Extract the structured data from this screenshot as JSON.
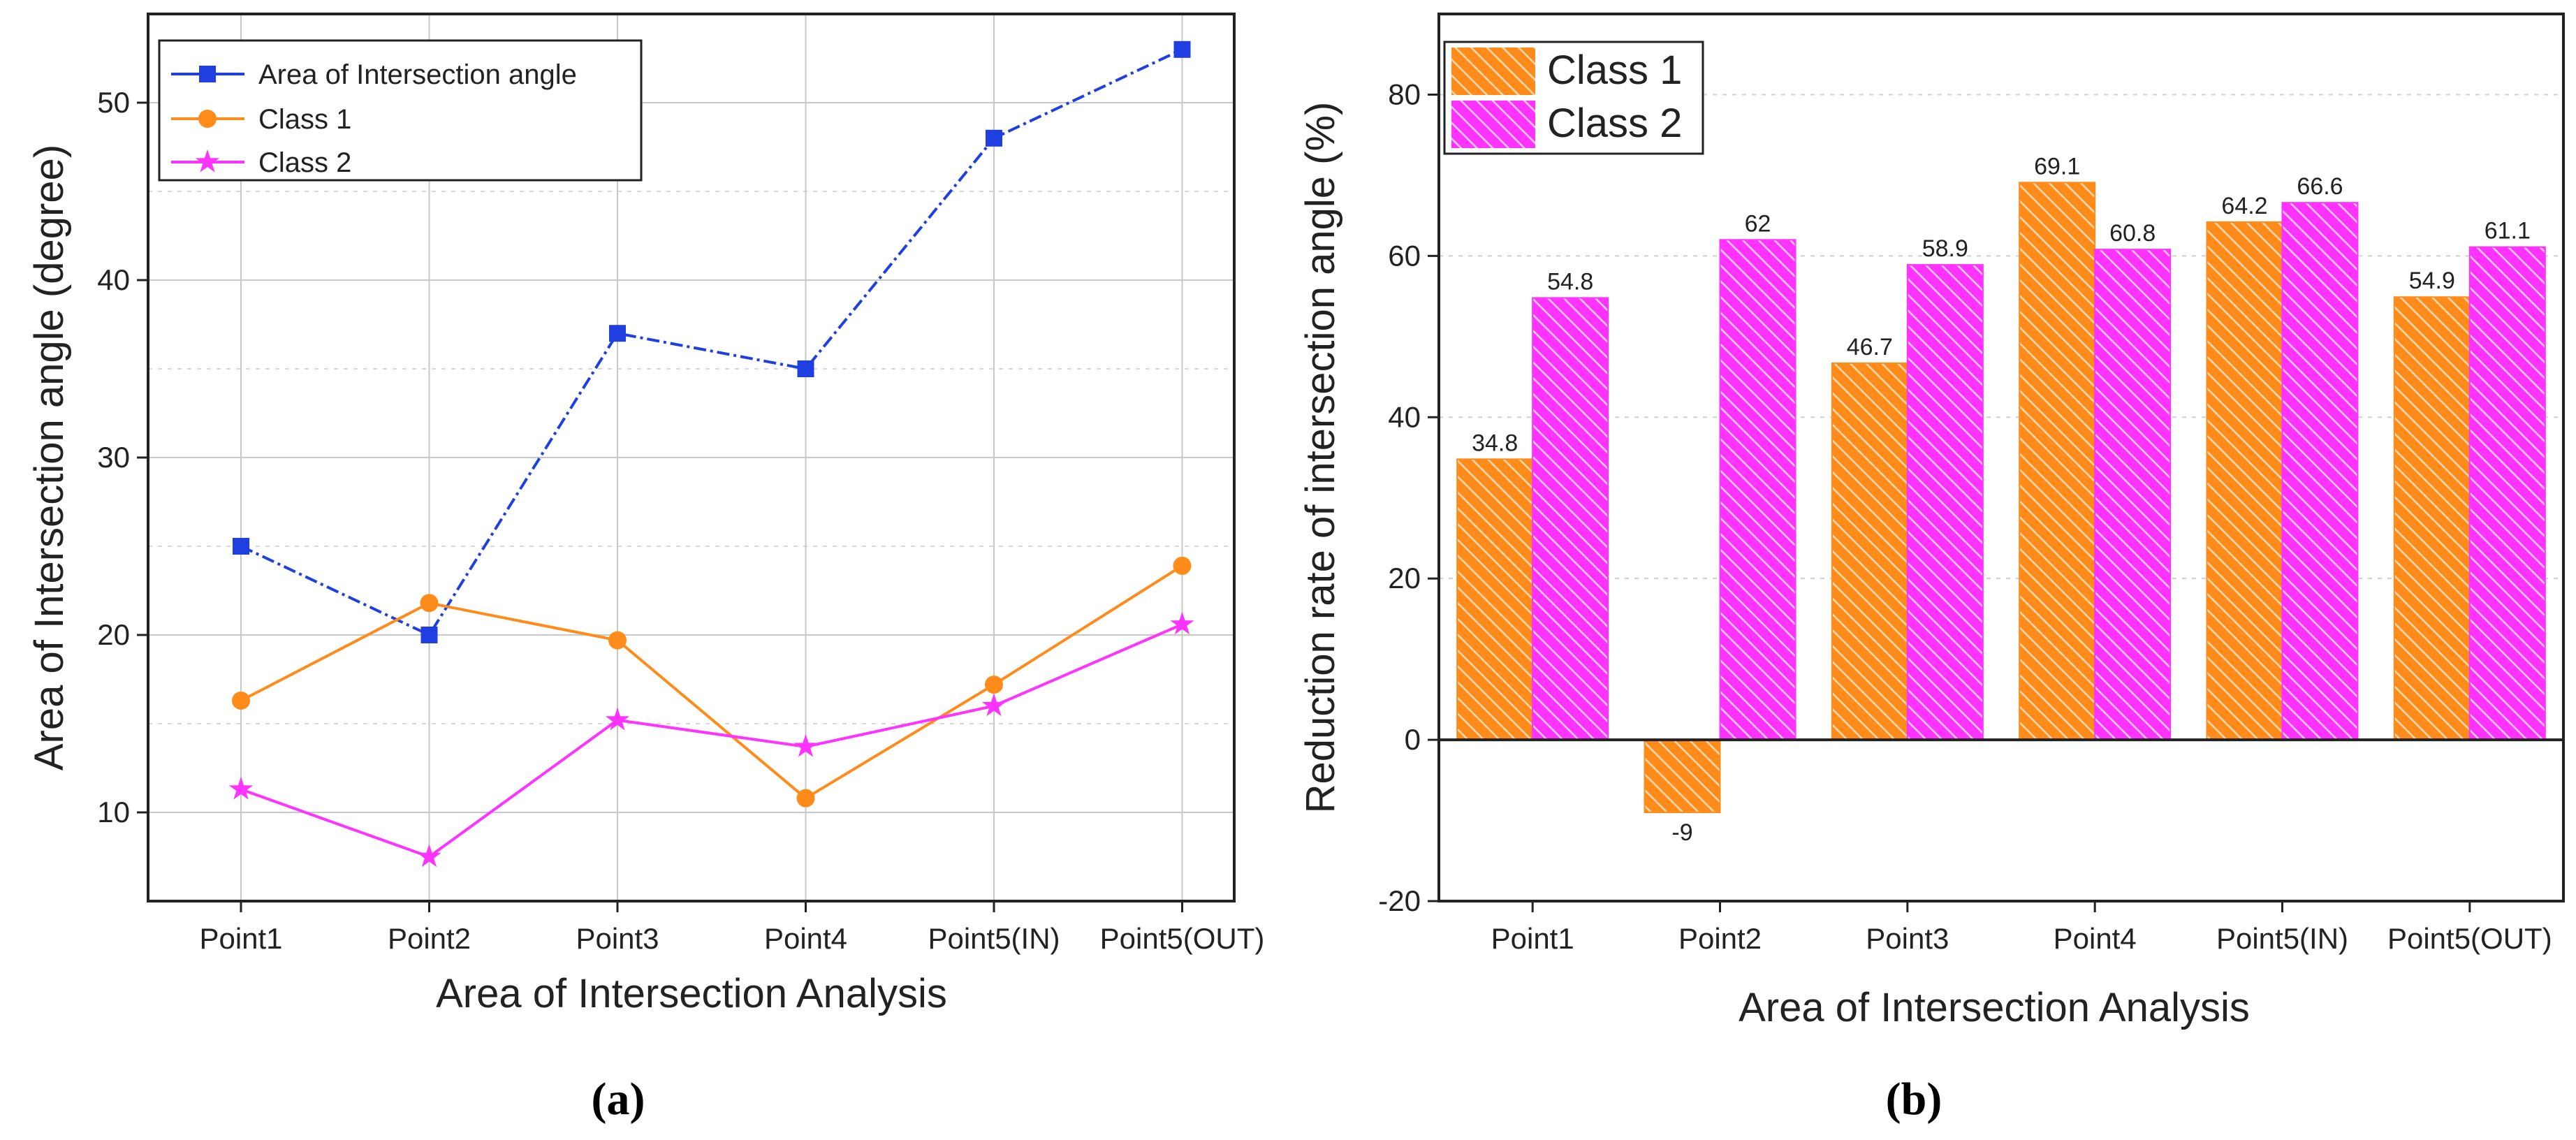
{
  "chart_data": [
    {
      "type": "line",
      "panel_label": "(a)",
      "title": "",
      "xlabel": "Area of Intersection Analysis",
      "ylabel": "Area of Intersection angle (degree)",
      "categories": [
        "Point1",
        "Point2",
        "Point3",
        "Point4",
        "Point5(IN)",
        "Point5(OUT)"
      ],
      "ylim": [
        5.0,
        55.0
      ],
      "yticks": [
        10,
        20,
        30,
        40,
        50
      ],
      "grid": true,
      "legend_position": "top-left",
      "series": [
        {
          "name": "Area of Intersection angle",
          "values": [
            25.0,
            20.0,
            37.0,
            35.0,
            48.0,
            53.0
          ],
          "color": "#1f3fe0",
          "marker": "square",
          "line_style": "dash-dot"
        },
        {
          "name": "Class 1",
          "values": [
            16.3,
            21.8,
            19.7,
            10.8,
            17.2,
            23.9
          ],
          "color": "#ff8c1a",
          "marker": "circle",
          "line_style": "solid"
        },
        {
          "name": "Class 2",
          "values": [
            11.3,
            7.5,
            15.2,
            13.7,
            16.0,
            20.6
          ],
          "color": "#ff33ff",
          "marker": "star",
          "line_style": "solid"
        }
      ]
    },
    {
      "type": "bar",
      "panel_label": "(b)",
      "title": "",
      "xlabel": "Area of Intersection Analysis",
      "ylabel": "Reduction rate of intersection angle (%)",
      "categories": [
        "Point1",
        "Point2",
        "Point3",
        "Point4",
        "Point5(IN)",
        "Point5(OUT)"
      ],
      "ylim": [
        -20,
        90
      ],
      "yticks": [
        -20,
        0,
        20,
        40,
        60,
        80
      ],
      "grid": true,
      "legend_position": "top-left",
      "series": [
        {
          "name": "Class 1",
          "values": [
            34.8,
            -9,
            46.7,
            69.1,
            64.2,
            54.9
          ],
          "labels": [
            "34.8",
            "-9",
            "46.7",
            "69.1",
            "64.2",
            "54.9"
          ],
          "color": "#ff8c1a",
          "hatch": "diagonal"
        },
        {
          "name": "Class 2",
          "values": [
            54.8,
            62,
            58.9,
            60.8,
            66.6,
            61.1
          ],
          "labels": [
            "54.8",
            "62",
            "58.9",
            "60.8",
            "66.6",
            "61.1"
          ],
          "color": "#ff33ff",
          "hatch": "diagonal"
        }
      ]
    }
  ]
}
